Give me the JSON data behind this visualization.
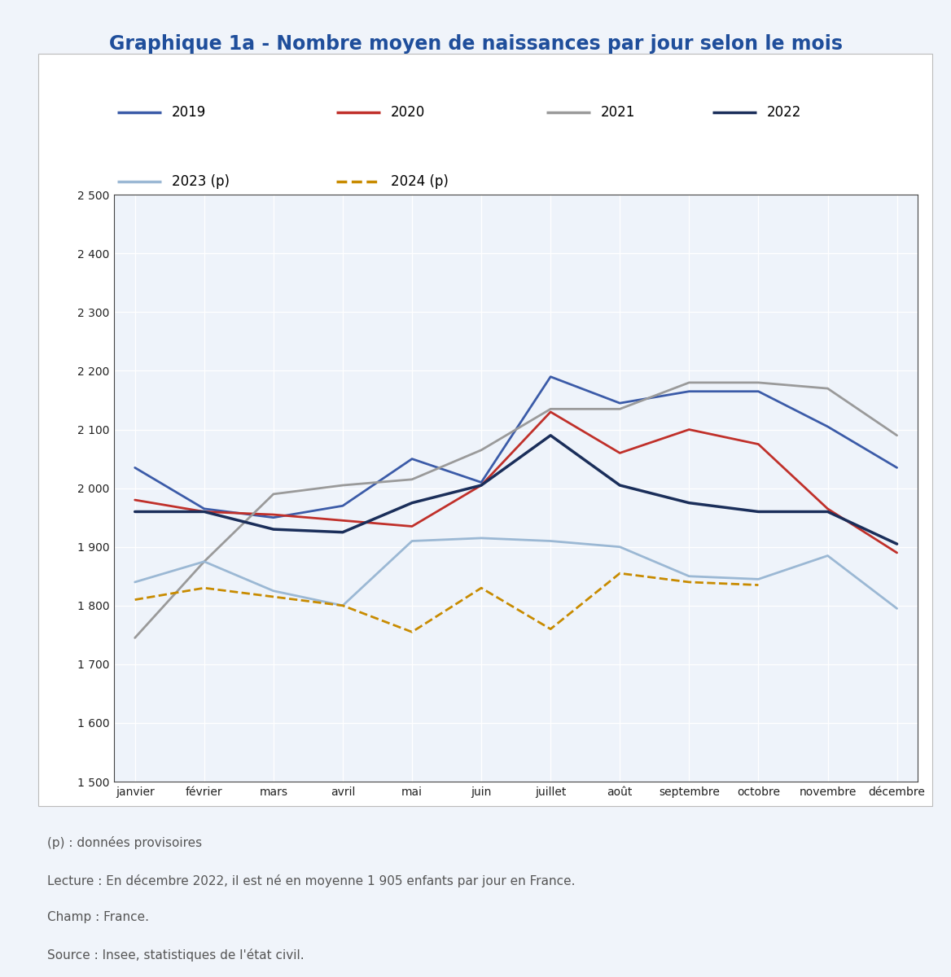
{
  "title": "Graphique 1a - Nombre moyen de naissances par jour selon le mois",
  "title_color": "#1F4E9B",
  "background_color": "#F0F4FA",
  "plot_bg_color": "#EEF3FA",
  "white_panel_color": "#FFFFFF",
  "months": [
    "janvier",
    "février",
    "mars",
    "avril",
    "mai",
    "juin",
    "juillet",
    "août",
    "septembre",
    "octobre",
    "novembre",
    "décembre"
  ],
  "series": [
    {
      "label": "2019",
      "color": "#3B5BA8",
      "linewidth": 2.0,
      "linestyle": "solid",
      "values": [
        2035,
        1965,
        1950,
        1970,
        2050,
        2010,
        2190,
        2145,
        2165,
        2165,
        2105,
        2035
      ]
    },
    {
      "label": "2020",
      "color": "#C0302A",
      "linewidth": 2.0,
      "linestyle": "solid",
      "values": [
        1980,
        1960,
        1955,
        1945,
        1935,
        2005,
        2130,
        2060,
        2100,
        2075,
        1965,
        1890
      ]
    },
    {
      "label": "2021",
      "color": "#9A9A9A",
      "linewidth": 2.0,
      "linestyle": "solid",
      "values": [
        1745,
        1875,
        1990,
        2005,
        2015,
        2065,
        2135,
        2135,
        2180,
        2180,
        2170,
        2090
      ]
    },
    {
      "label": "2022",
      "color": "#1A2E5A",
      "linewidth": 2.5,
      "linestyle": "solid",
      "values": [
        1960,
        1960,
        1930,
        1925,
        1975,
        2005,
        2090,
        2005,
        1975,
        1960,
        1960,
        1905
      ]
    },
    {
      "label": "2023 (p)",
      "color": "#9BB8D4",
      "linewidth": 2.0,
      "linestyle": "solid",
      "values": [
        1840,
        1875,
        1825,
        1800,
        1910,
        1915,
        1910,
        1900,
        1850,
        1845,
        1885,
        1795
      ]
    },
    {
      "label": "2024 (p)",
      "color": "#C88B00",
      "linewidth": 2.0,
      "linestyle": "dashed",
      "values": [
        1810,
        1830,
        null,
        1800,
        1755,
        1830,
        1760,
        1855,
        1840,
        1835,
        null,
        null
      ]
    }
  ],
  "ylim": [
    1500,
    2500
  ],
  "yticks": [
    1500,
    1600,
    1700,
    1800,
    1900,
    2000,
    2100,
    2200,
    2300,
    2400,
    2500
  ],
  "ytick_labels": [
    "1 500",
    "1 600",
    "1 700",
    "1 800",
    "1 900",
    "2 000",
    "2 100",
    "2 200",
    "2 300",
    "2 400",
    "2 500"
  ],
  "legend_row1": [
    {
      "label": "2019",
      "color": "#3B5BA8",
      "linestyle": "solid"
    },
    {
      "label": "2020",
      "color": "#C0302A",
      "linestyle": "solid"
    },
    {
      "label": "2021",
      "color": "#9A9A9A",
      "linestyle": "solid"
    },
    {
      "label": "2022",
      "color": "#1A2E5A",
      "linestyle": "solid"
    }
  ],
  "legend_row2": [
    {
      "label": "2023 (p)",
      "color": "#9BB8D4",
      "linestyle": "solid"
    },
    {
      "label": "2024 (p)",
      "color": "#C88B00",
      "linestyle": "dashed"
    }
  ],
  "footnotes": [
    "(p) : données provisoires",
    "Lecture : En décembre 2022, il est né en moyenne 1 905 enfants par jour en France.",
    "Champ : France.",
    "Source : Insee, statistiques de l'état civil."
  ]
}
